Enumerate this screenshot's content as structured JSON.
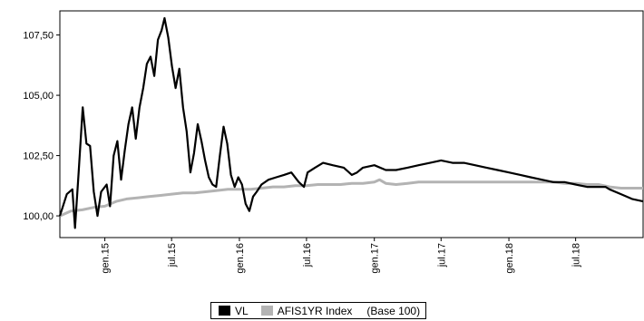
{
  "chart_data": {
    "type": "line",
    "title": "",
    "xlabel": "",
    "ylabel": "",
    "ylim": [
      99.1,
      108.5
    ],
    "xlim": [
      "2014-09-01",
      "2018-12-31"
    ],
    "y_ticks": [
      {
        "value": 100.0,
        "label": "100,00"
      },
      {
        "value": 102.5,
        "label": "102,50"
      },
      {
        "value": 105.0,
        "label": "105,00"
      },
      {
        "value": 107.5,
        "label": "107,50"
      }
    ],
    "x_ticks": [
      {
        "date": "2015-01-01",
        "label": "gen.15"
      },
      {
        "date": "2015-07-01",
        "label": "jul.15"
      },
      {
        "date": "2016-01-01",
        "label": "gen.16"
      },
      {
        "date": "2016-07-01",
        "label": "jul.16"
      },
      {
        "date": "2017-01-01",
        "label": "gen.17"
      },
      {
        "date": "2017-07-01",
        "label": "jul.17"
      },
      {
        "date": "2018-01-01",
        "label": "gen.18"
      },
      {
        "date": "2018-07-01",
        "label": "jul.18"
      }
    ],
    "grid": false,
    "legend_position": "bottom-center",
    "series": [
      {
        "name": "VL",
        "color": "#000000",
        "points": [
          [
            "2014-09-01",
            100.0
          ],
          [
            "2014-09-20",
            100.9
          ],
          [
            "2014-10-05",
            101.1
          ],
          [
            "2014-10-12",
            99.5
          ],
          [
            "2014-10-22",
            101.8
          ],
          [
            "2014-11-02",
            104.5
          ],
          [
            "2014-11-12",
            103.0
          ],
          [
            "2014-11-22",
            102.9
          ],
          [
            "2014-12-02",
            101.0
          ],
          [
            "2014-12-12",
            100.0
          ],
          [
            "2014-12-22",
            101.0
          ],
          [
            "2015-01-06",
            101.3
          ],
          [
            "2015-01-15",
            100.4
          ],
          [
            "2015-01-25",
            102.5
          ],
          [
            "2015-02-04",
            103.1
          ],
          [
            "2015-02-14",
            101.5
          ],
          [
            "2015-02-24",
            102.7
          ],
          [
            "2015-03-06",
            103.8
          ],
          [
            "2015-03-16",
            104.5
          ],
          [
            "2015-03-26",
            103.2
          ],
          [
            "2015-04-05",
            104.5
          ],
          [
            "2015-04-15",
            105.3
          ],
          [
            "2015-04-25",
            106.3
          ],
          [
            "2015-05-05",
            106.6
          ],
          [
            "2015-05-15",
            105.8
          ],
          [
            "2015-05-25",
            107.3
          ],
          [
            "2015-06-04",
            107.7
          ],
          [
            "2015-06-12",
            108.2
          ],
          [
            "2015-06-22",
            107.4
          ],
          [
            "2015-07-02",
            106.2
          ],
          [
            "2015-07-12",
            105.3
          ],
          [
            "2015-07-22",
            106.1
          ],
          [
            "2015-08-01",
            104.5
          ],
          [
            "2015-08-11",
            103.5
          ],
          [
            "2015-08-21",
            101.8
          ],
          [
            "2015-08-31",
            102.6
          ],
          [
            "2015-09-10",
            103.8
          ],
          [
            "2015-09-20",
            103.1
          ],
          [
            "2015-09-30",
            102.3
          ],
          [
            "2015-10-10",
            101.6
          ],
          [
            "2015-10-20",
            101.3
          ],
          [
            "2015-10-30",
            101.2
          ],
          [
            "2015-11-09",
            102.5
          ],
          [
            "2015-11-19",
            103.7
          ],
          [
            "2015-11-29",
            103.0
          ],
          [
            "2015-12-09",
            101.7
          ],
          [
            "2015-12-19",
            101.2
          ],
          [
            "2015-12-29",
            101.6
          ],
          [
            "2016-01-08",
            101.3
          ],
          [
            "2016-01-18",
            100.5
          ],
          [
            "2016-01-28",
            100.2
          ],
          [
            "2016-02-07",
            100.8
          ],
          [
            "2016-02-17",
            101.0
          ],
          [
            "2016-03-01",
            101.3
          ],
          [
            "2016-03-20",
            101.5
          ],
          [
            "2016-04-10",
            101.6
          ],
          [
            "2016-05-01",
            101.7
          ],
          [
            "2016-05-21",
            101.8
          ],
          [
            "2016-06-10",
            101.4
          ],
          [
            "2016-06-24",
            101.2
          ],
          [
            "2016-07-04",
            101.8
          ],
          [
            "2016-07-24",
            102.0
          ],
          [
            "2016-08-15",
            102.2
          ],
          [
            "2016-09-10",
            102.1
          ],
          [
            "2016-10-10",
            102.0
          ],
          [
            "2016-11-01",
            101.7
          ],
          [
            "2016-11-15",
            101.8
          ],
          [
            "2016-12-01",
            102.0
          ],
          [
            "2017-01-01",
            102.1
          ],
          [
            "2017-02-01",
            101.9
          ],
          [
            "2017-03-01",
            101.9
          ],
          [
            "2017-04-01",
            102.0
          ],
          [
            "2017-05-01",
            102.1
          ],
          [
            "2017-06-01",
            102.2
          ],
          [
            "2017-07-01",
            102.3
          ],
          [
            "2017-08-01",
            102.2
          ],
          [
            "2017-09-01",
            102.2
          ],
          [
            "2017-10-01",
            102.1
          ],
          [
            "2017-11-01",
            102.0
          ],
          [
            "2017-12-01",
            101.9
          ],
          [
            "2018-01-01",
            101.8
          ],
          [
            "2018-02-01",
            101.7
          ],
          [
            "2018-03-01",
            101.6
          ],
          [
            "2018-04-01",
            101.5
          ],
          [
            "2018-05-01",
            101.4
          ],
          [
            "2018-06-01",
            101.4
          ],
          [
            "2018-07-01",
            101.3
          ],
          [
            "2018-08-01",
            101.2
          ],
          [
            "2018-09-01",
            101.2
          ],
          [
            "2018-09-20",
            101.2
          ],
          [
            "2018-10-01",
            101.1
          ],
          [
            "2018-11-01",
            100.9
          ],
          [
            "2018-12-01",
            100.7
          ],
          [
            "2018-12-31",
            100.6
          ]
        ]
      },
      {
        "name": "AFIS1YR Index",
        "color": "#b3b3b3",
        "points": [
          [
            "2014-09-01",
            100.0
          ],
          [
            "2014-10-01",
            100.2
          ],
          [
            "2014-11-01",
            100.25
          ],
          [
            "2014-12-01",
            100.35
          ],
          [
            "2015-01-01",
            100.4
          ],
          [
            "2015-02-01",
            100.6
          ],
          [
            "2015-03-01",
            100.7
          ],
          [
            "2015-04-01",
            100.75
          ],
          [
            "2015-05-01",
            100.8
          ],
          [
            "2015-06-01",
            100.85
          ],
          [
            "2015-07-01",
            100.9
          ],
          [
            "2015-08-01",
            100.95
          ],
          [
            "2015-09-01",
            100.95
          ],
          [
            "2015-10-01",
            101.0
          ],
          [
            "2015-11-01",
            101.05
          ],
          [
            "2015-12-01",
            101.1
          ],
          [
            "2016-01-01",
            101.1
          ],
          [
            "2016-02-01",
            101.1
          ],
          [
            "2016-03-01",
            101.15
          ],
          [
            "2016-04-01",
            101.2
          ],
          [
            "2016-05-01",
            101.2
          ],
          [
            "2016-06-01",
            101.25
          ],
          [
            "2016-07-01",
            101.25
          ],
          [
            "2016-08-01",
            101.3
          ],
          [
            "2016-09-01",
            101.3
          ],
          [
            "2016-10-01",
            101.3
          ],
          [
            "2016-11-01",
            101.35
          ],
          [
            "2016-12-01",
            101.35
          ],
          [
            "2017-01-01",
            101.4
          ],
          [
            "2017-01-15",
            101.5
          ],
          [
            "2017-02-01",
            101.35
          ],
          [
            "2017-03-01",
            101.3
          ],
          [
            "2017-04-01",
            101.35
          ],
          [
            "2017-05-01",
            101.4
          ],
          [
            "2017-06-01",
            101.4
          ],
          [
            "2017-07-01",
            101.4
          ],
          [
            "2017-08-01",
            101.4
          ],
          [
            "2017-09-01",
            101.4
          ],
          [
            "2017-10-01",
            101.4
          ],
          [
            "2017-11-01",
            101.4
          ],
          [
            "2017-12-01",
            101.4
          ],
          [
            "2018-01-01",
            101.4
          ],
          [
            "2018-02-01",
            101.4
          ],
          [
            "2018-03-01",
            101.4
          ],
          [
            "2018-04-01",
            101.4
          ],
          [
            "2018-05-01",
            101.4
          ],
          [
            "2018-06-01",
            101.35
          ],
          [
            "2018-07-01",
            101.35
          ],
          [
            "2018-08-01",
            101.3
          ],
          [
            "2018-09-01",
            101.3
          ],
          [
            "2018-10-01",
            101.2
          ],
          [
            "2018-11-01",
            101.15
          ],
          [
            "2018-12-01",
            101.15
          ],
          [
            "2018-12-31",
            101.15
          ]
        ]
      }
    ]
  },
  "legend": {
    "items": [
      {
        "label": "VL",
        "color": "#000000"
      },
      {
        "label": "AFIS1YR Index",
        "color": "#b3b3b3"
      }
    ],
    "note": "(Base 100)"
  }
}
